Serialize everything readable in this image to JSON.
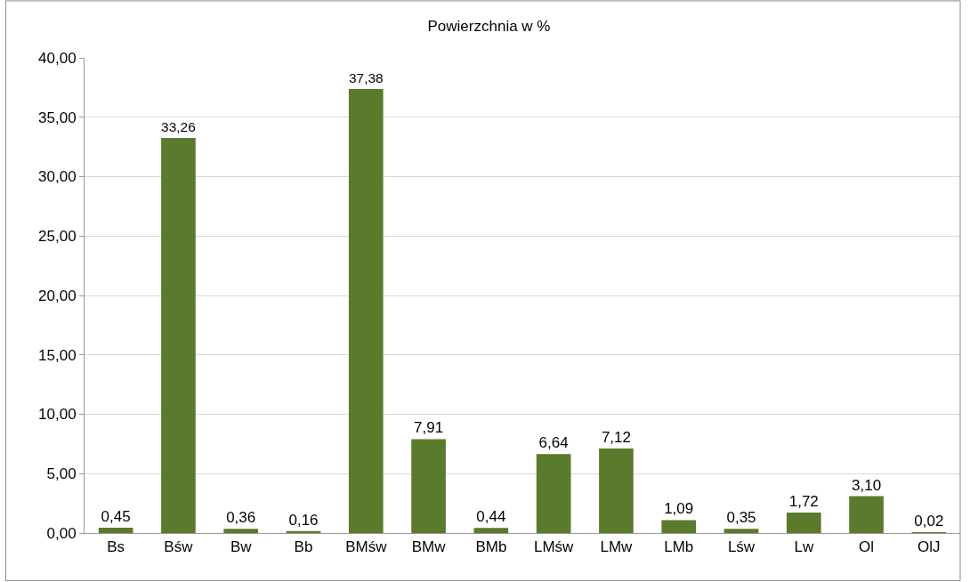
{
  "chart_data": {
    "type": "bar",
    "title": "Powierzchnia w %",
    "categories": [
      "Bs",
      "Bśw",
      "Bw",
      "Bb",
      "BMśw",
      "BMw",
      "BMb",
      "LMśw",
      "LMw",
      "LMb",
      "Lśw",
      "Lw",
      "Ol",
      "OlJ"
    ],
    "values": [
      0.45,
      33.26,
      0.36,
      0.16,
      37.38,
      7.91,
      0.44,
      6.64,
      7.12,
      1.09,
      0.35,
      1.72,
      3.1,
      0.02
    ],
    "value_labels": [
      "0,45",
      "33,26",
      "0,36",
      "0,16",
      "37,38",
      "7,91",
      "0,44",
      "6,64",
      "7,12",
      "1,09",
      "0,35",
      "1,72",
      "3,10",
      "0,02"
    ],
    "color": "#5a7a2c",
    "ylim": [
      0,
      40
    ],
    "yticks": [
      {
        "value": 0,
        "label": "0,00"
      },
      {
        "value": 5,
        "label": "5,00"
      },
      {
        "value": 10,
        "label": "10,00"
      },
      {
        "value": 15,
        "label": "15,00"
      },
      {
        "value": 20,
        "label": "20,00"
      },
      {
        "value": 25,
        "label": "25,00"
      },
      {
        "value": 30,
        "label": "30,00"
      },
      {
        "value": 35,
        "label": "35,00"
      },
      {
        "value": 40,
        "label": "40,00"
      }
    ],
    "grid": "y",
    "legend": false
  }
}
